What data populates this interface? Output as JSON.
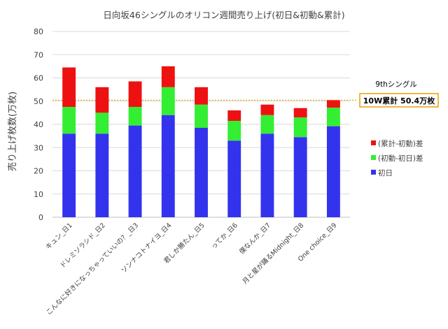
{
  "chart_data": {
    "type": "bar",
    "stacked": true,
    "title": "日向坂46シングルのオリコン週間売り上げ(初日&初動&累計)",
    "ylabel": "売り上げ枚数(万枚)",
    "xlabel": "",
    "ylim": [
      0,
      80
    ],
    "yticks": [
      0,
      10,
      20,
      30,
      40,
      50,
      60,
      70,
      80
    ],
    "grid": true,
    "legend_position": "right",
    "categories": [
      "キュン_日1",
      "ドレミソラシド_日2",
      "こんなに好きになっちゃっていいの？_日3",
      "ソンナコトナイヨ_日4",
      "君しか勝たん_日5",
      "ってか_日6",
      "僕なんか_日7",
      "月と星が踊るMidnight_日8",
      "One choice_日9"
    ],
    "series": [
      {
        "name": "初日",
        "color": "#3333ee",
        "values": [
          36.0,
          36.0,
          39.5,
          44.0,
          38.5,
          33.0,
          36.0,
          34.5,
          39.2
        ]
      },
      {
        "name": "(初動-初日)差",
        "color": "#33ee33",
        "values": [
          11.5,
          9.0,
          8.0,
          12.0,
          10.0,
          8.5,
          8.0,
          8.5,
          8.0
        ]
      },
      {
        "name": "(累計-初動)差",
        "color": "#ee1111",
        "values": [
          17.0,
          11.0,
          11.0,
          9.0,
          7.5,
          4.5,
          4.5,
          4.0,
          3.2
        ]
      }
    ],
    "reference_line": {
      "value": 50.4,
      "color": "#e8a000"
    },
    "annotations": {
      "label": "9thシングル",
      "callout": "10W累計 50.4万枚",
      "callout_border_color": "#e8a000"
    }
  }
}
